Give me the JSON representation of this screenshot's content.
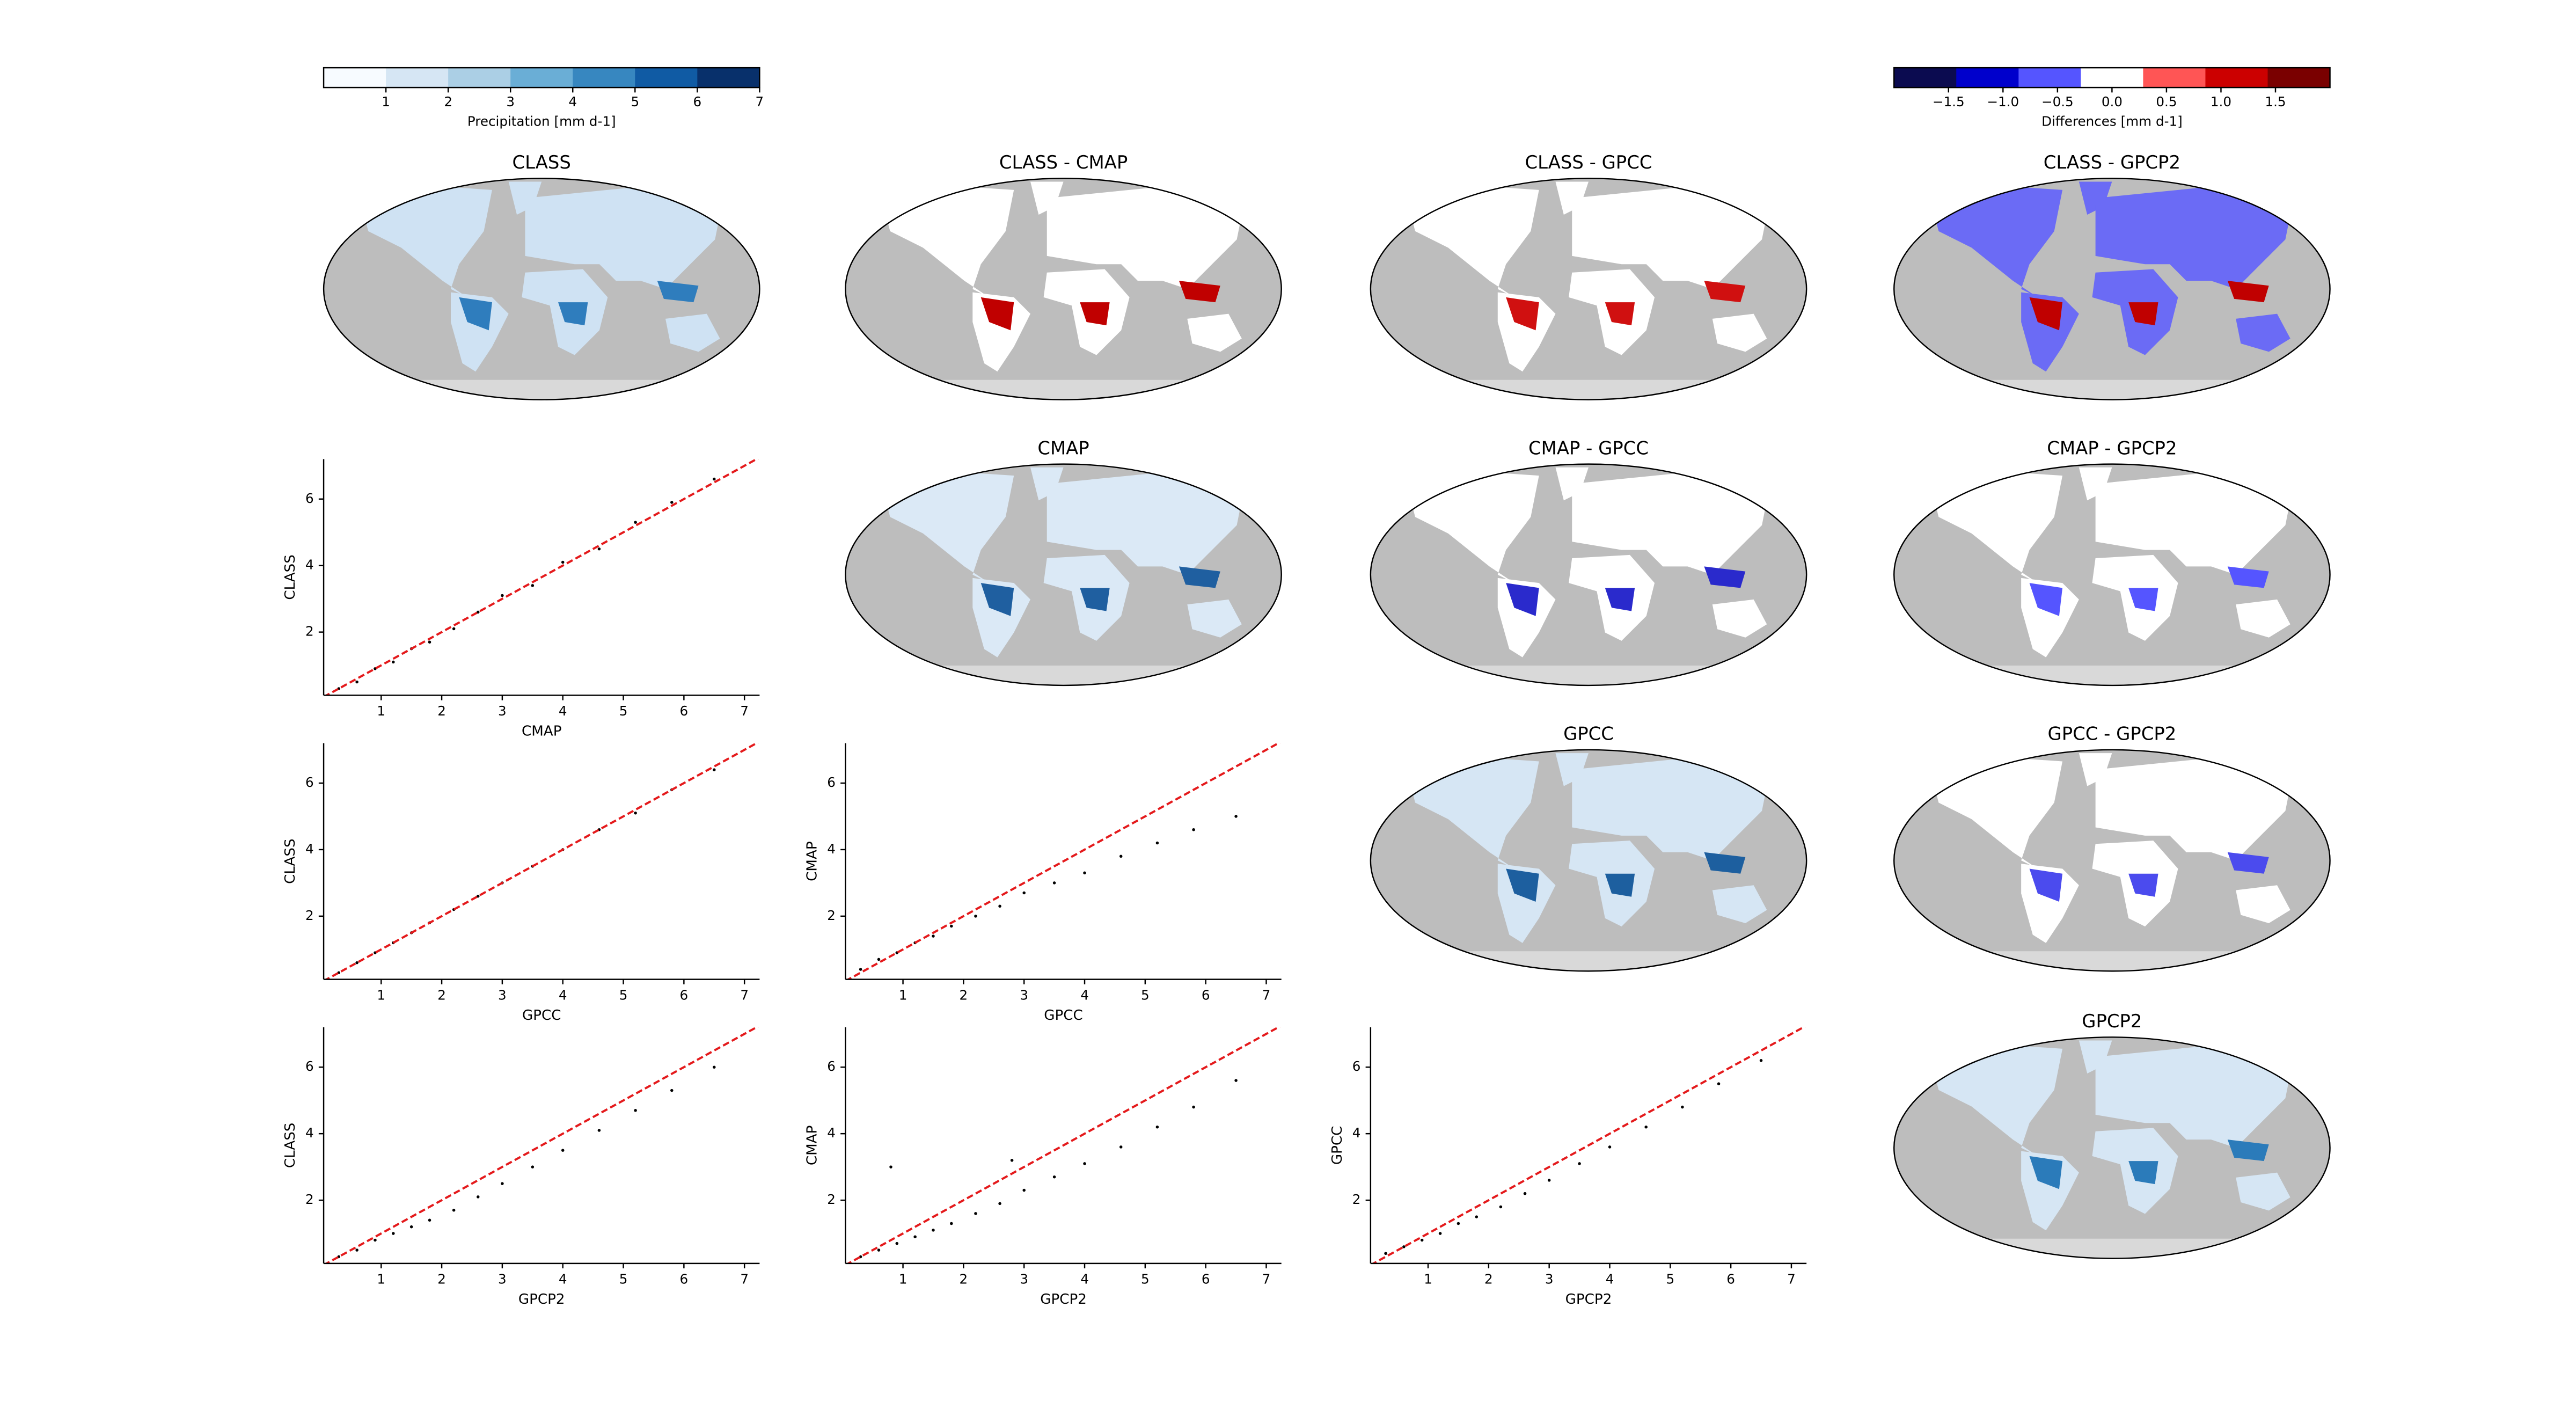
{
  "chart_data": [
    {
      "type": "colorbar",
      "label": "Precipitation [mm d-1]",
      "lim": [
        0,
        7
      ],
      "ticks": [
        1,
        2,
        3,
        4,
        5,
        6,
        7
      ],
      "colors": [
        "#f7fbff",
        "#d6e6f4",
        "#abcfe5",
        "#6aaed6",
        "#3787c0",
        "#105ba4",
        "#08306b"
      ]
    },
    {
      "type": "colorbar",
      "label": "Differences [mm d-1]",
      "lim": [
        -2,
        2
      ],
      "ticks": [
        {
          "value": -1.5,
          "label": "−1.5"
        },
        {
          "value": -1.0,
          "label": "−1.0"
        },
        {
          "value": -0.5,
          "label": "−0.5"
        },
        {
          "value": 0,
          "label": "0.0"
        },
        0.5,
        {
          "value": 1.0,
          "label": "1.0"
        },
        1.5
      ],
      "colors": [
        "#0b0b50",
        "#0000cc",
        "#5555ff",
        "#ffffff",
        "#ff5555",
        "#cc0000",
        "#7a0000"
      ]
    },
    {
      "type": "map",
      "title": "CLASS",
      "land_color": "#cfe2f3",
      "accent_color": "#2f7dbd"
    },
    {
      "type": "map",
      "title": "CLASS - CMAP",
      "land_color": "#ffffff",
      "accent_color": "#c00000"
    },
    {
      "type": "map",
      "title": "CLASS - GPCC",
      "land_color": "#ffffff",
      "accent_color": "#d01010"
    },
    {
      "type": "map",
      "title": "CLASS - GPCP2",
      "land_color": "#6b6bf5",
      "accent_color": "#c00000"
    },
    {
      "type": "map",
      "title": "CMAP",
      "land_color": "#dbe9f6",
      "accent_color": "#1f5fa0"
    },
    {
      "type": "map",
      "title": "CMAP - GPCC",
      "land_color": "#ffffff",
      "accent_color": "#2a2acc"
    },
    {
      "type": "map",
      "title": "CMAP - GPCP2",
      "land_color": "#ffffff",
      "accent_color": "#5555ff"
    },
    {
      "type": "map",
      "title": "GPCC",
      "land_color": "#d6e6f4",
      "accent_color": "#1d5f9f"
    },
    {
      "type": "map",
      "title": "GPCC - GPCP2",
      "land_color": "#ffffff",
      "accent_color": "#4b4bee"
    },
    {
      "type": "map",
      "title": "GPCP2",
      "land_color": "#d6e6f4",
      "accent_color": "#2b7bba"
    },
    {
      "type": "scatter",
      "xlabel": "CMAP",
      "ylabel": "CLASS",
      "xlim": [
        0.05,
        7.25
      ],
      "ylim": [
        0.1,
        7.2
      ],
      "xticks": [
        1,
        2,
        3,
        4,
        5,
        6,
        7
      ],
      "yticks": [
        2,
        4,
        6
      ],
      "line_color": "#e41a1c",
      "point_color": "#000000",
      "x": [
        0.3,
        0.6,
        0.9,
        1.2,
        1.5,
        1.8,
        2.2,
        2.6,
        3.0,
        3.5,
        4.0,
        4.6,
        5.2,
        5.8,
        6.5
      ],
      "y": [
        0.3,
        0.5,
        0.9,
        1.1,
        1.5,
        1.7,
        2.1,
        2.6,
        3.1,
        3.4,
        4.1,
        4.5,
        5.3,
        5.9,
        6.6
      ]
    },
    {
      "type": "scatter",
      "xlabel": "GPCC",
      "ylabel": "CLASS",
      "xlim": [
        0.05,
        7.25
      ],
      "ylim": [
        0.1,
        7.2
      ],
      "xticks": [
        1,
        2,
        3,
        4,
        5,
        6,
        7
      ],
      "yticks": [
        2,
        4,
        6
      ],
      "line_color": "#e41a1c",
      "point_color": "#000000",
      "x": [
        0.3,
        0.6,
        0.9,
        1.2,
        1.5,
        1.8,
        2.2,
        2.6,
        3.0,
        3.5,
        4.0,
        4.6,
        5.2,
        5.8,
        6.5
      ],
      "y": [
        0.3,
        0.6,
        0.9,
        1.2,
        1.5,
        1.8,
        2.2,
        2.6,
        3.0,
        3.5,
        4.0,
        4.6,
        5.1,
        5.8,
        6.4
      ]
    },
    {
      "type": "scatter",
      "xlabel": "GPCC",
      "ylabel": "CMAP",
      "xlim": [
        0.05,
        7.25
      ],
      "ylim": [
        0.1,
        7.2
      ],
      "xticks": [
        1,
        2,
        3,
        4,
        5,
        6,
        7
      ],
      "yticks": [
        2,
        4,
        6
      ],
      "line_color": "#e41a1c",
      "point_color": "#000000",
      "x": [
        0.3,
        0.6,
        0.9,
        1.2,
        1.5,
        1.8,
        2.2,
        2.6,
        3.0,
        3.5,
        4.0,
        4.6,
        5.2,
        5.8,
        6.5
      ],
      "y": [
        0.4,
        0.7,
        0.9,
        1.2,
        1.4,
        1.7,
        2.0,
        2.3,
        2.7,
        3.0,
        3.3,
        3.8,
        4.2,
        4.6,
        5.0
      ]
    },
    {
      "type": "scatter",
      "xlabel": "GPCP2",
      "ylabel": "CLASS",
      "xlim": [
        0.05,
        7.25
      ],
      "ylim": [
        0.1,
        7.2
      ],
      "xticks": [
        1,
        2,
        3,
        4,
        5,
        6,
        7
      ],
      "yticks": [
        2,
        4,
        6
      ],
      "line_color": "#e41a1c",
      "point_color": "#000000",
      "x": [
        0.3,
        0.6,
        0.9,
        1.2,
        1.5,
        1.8,
        2.2,
        2.6,
        3.0,
        3.5,
        4.0,
        4.6,
        5.2,
        5.8,
        6.5
      ],
      "y": [
        0.3,
        0.5,
        0.8,
        1.0,
        1.2,
        1.4,
        1.7,
        2.1,
        2.5,
        3.0,
        3.5,
        4.1,
        4.7,
        5.3,
        6.0
      ]
    },
    {
      "type": "scatter",
      "xlabel": "GPCP2",
      "ylabel": "CMAP",
      "xlim": [
        0.05,
        7.25
      ],
      "ylim": [
        0.1,
        7.2
      ],
      "xticks": [
        1,
        2,
        3,
        4,
        5,
        6,
        7
      ],
      "yticks": [
        2,
        4,
        6
      ],
      "line_color": "#e41a1c",
      "point_color": "#000000",
      "x": [
        0.3,
        0.6,
        0.9,
        1.2,
        1.5,
        1.8,
        2.2,
        2.6,
        3.0,
        3.5,
        4.0,
        4.6,
        5.2,
        5.8,
        6.5,
        0.8,
        2.8
      ],
      "y": [
        0.3,
        0.5,
        0.7,
        0.9,
        1.1,
        1.3,
        1.6,
        1.9,
        2.3,
        2.7,
        3.1,
        3.6,
        4.2,
        4.8,
        5.6,
        3.0,
        3.2
      ]
    },
    {
      "type": "scatter",
      "xlabel": "GPCP2",
      "ylabel": "GPCC",
      "xlim": [
        0.05,
        7.25
      ],
      "ylim": [
        0.1,
        7.2
      ],
      "xticks": [
        1,
        2,
        3,
        4,
        5,
        6,
        7
      ],
      "yticks": [
        2,
        4,
        6
      ],
      "line_color": "#e41a1c",
      "point_color": "#000000",
      "x": [
        0.3,
        0.6,
        0.9,
        1.2,
        1.5,
        1.8,
        2.2,
        2.6,
        3.0,
        3.5,
        4.0,
        4.6,
        5.2,
        5.8,
        6.5
      ],
      "y": [
        0.4,
        0.6,
        0.8,
        1.0,
        1.3,
        1.5,
        1.8,
        2.2,
        2.6,
        3.1,
        3.6,
        4.2,
        4.8,
        5.5,
        6.2
      ]
    }
  ]
}
